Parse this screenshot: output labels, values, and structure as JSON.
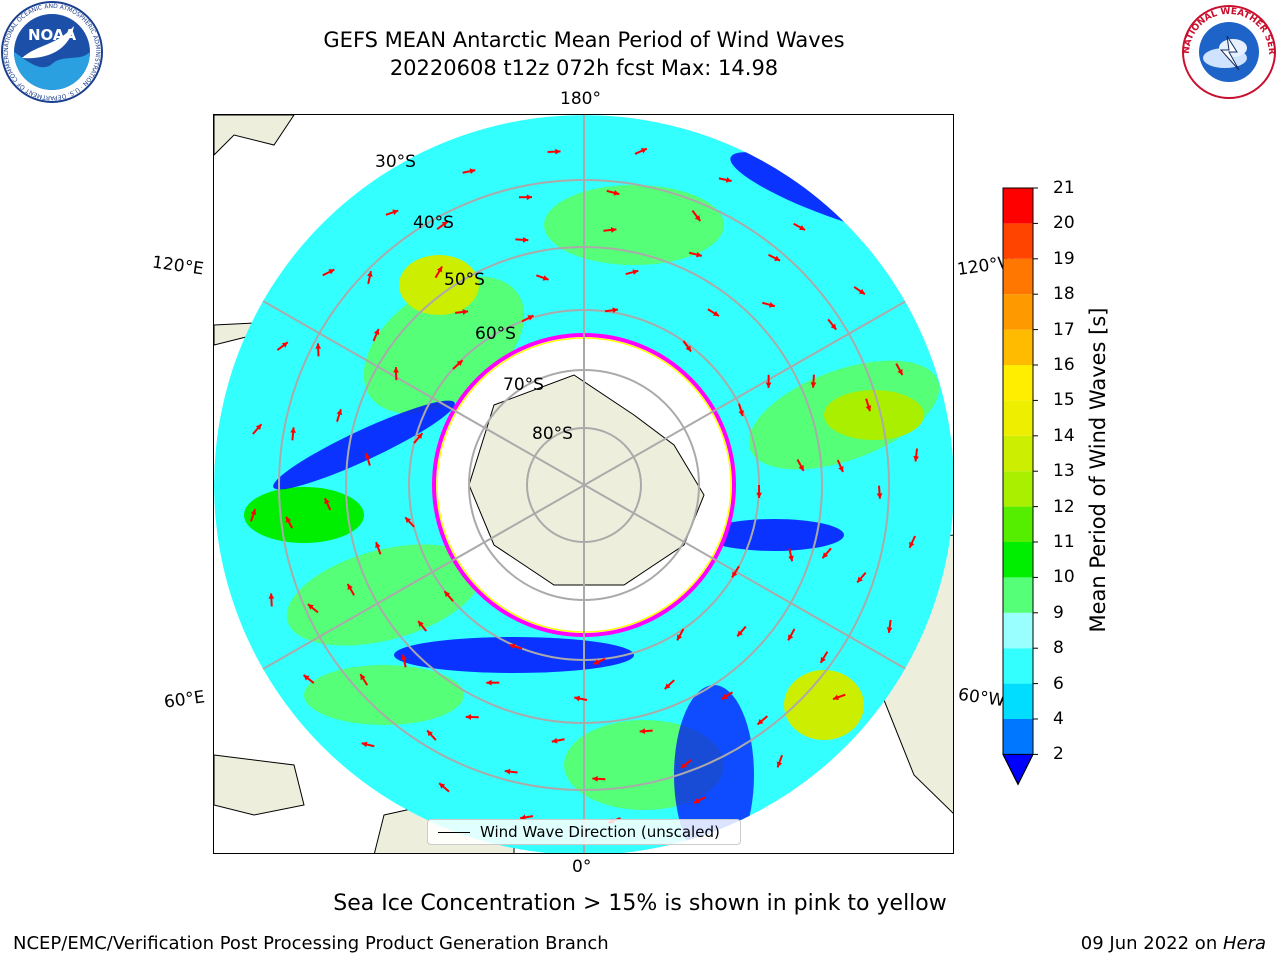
{
  "title": {
    "line1": "GEFS MEAN Antarctic Mean Period of Wind Waves",
    "line2": "20220608 t12z 072h fcst   Max: 14.98"
  },
  "map": {
    "projection": "south-polar-stereographic",
    "lon_labels": {
      "top": "180°",
      "bottom": "0°",
      "upper_left": "120°E",
      "upper_right": "120°W",
      "lower_left": "60°E",
      "lower_right": "60°W"
    },
    "lat_labels": [
      "30°S",
      "40°S",
      "50°S",
      "60°S",
      "70°S",
      "80°S"
    ],
    "legend": "Wind Wave Direction (unscaled)",
    "arrow_color": "#ff0000",
    "land_color": "#eeeedc",
    "ice_edge_colors": [
      "#ff00ff",
      "#ffff00"
    ]
  },
  "colorbar": {
    "label": "Mean Period of Wind Waves [s]",
    "ticks": [
      "2",
      "4",
      "6",
      "8",
      "9",
      "10",
      "11",
      "12",
      "13",
      "14",
      "15",
      "16",
      "17",
      "18",
      "19",
      "20",
      "21"
    ],
    "colors": [
      "#0077ff",
      "#00ddff",
      "#33ffff",
      "#99ffff",
      "#55ff77",
      "#00ee00",
      "#55ee00",
      "#aaee00",
      "#ccee00",
      "#eeee00",
      "#ffee00",
      "#ffbb00",
      "#ff9900",
      "#ff7700",
      "#ff4400",
      "#ff0000"
    ],
    "extend_color": "#0000ff"
  },
  "subcaption": "Sea Ice Concentration > 15% is shown in pink to yellow",
  "footer": {
    "left": "NCEP/EMC/Verification Post Processing Product Generation Branch",
    "right_prefix": "09 Jun 2022 on ",
    "right_italic": "Hera"
  },
  "logos": {
    "left": {
      "text": "NOAA",
      "ring_text": "NATIONAL OCEANIC AND ATMOSPHERIC ADMINISTRATION · U.S. DEPARTMENT OF COMMERCE"
    },
    "right": {
      "ring_text": "NATIONAL WEATHER SERVICE"
    }
  }
}
